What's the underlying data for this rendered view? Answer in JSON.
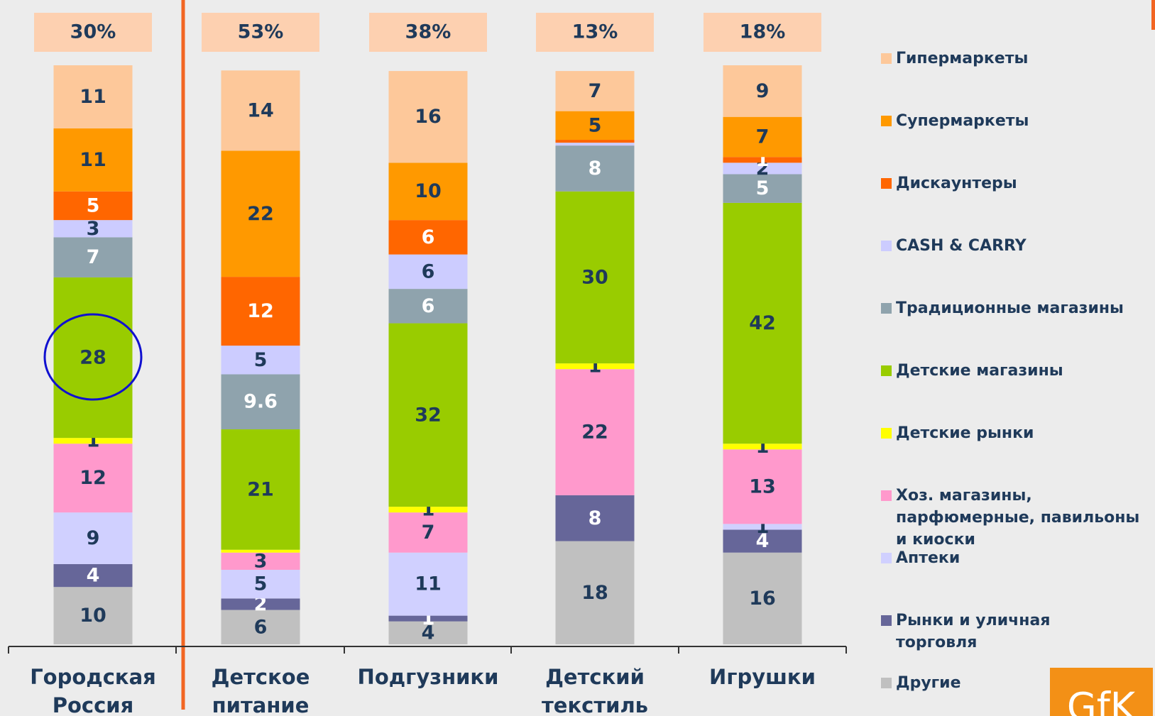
{
  "chart_data": {
    "type": "stacked-bar",
    "categories": [
      "Городская Россия",
      "Детское питание",
      "Подгузники",
      "Детский текстиль",
      "Игрушки"
    ],
    "shares": {
      "values": [
        30,
        53,
        38,
        13,
        18
      ],
      "value_labels": [
        "30%",
        "53%",
        "38%",
        "13%",
        "18%"
      ]
    },
    "series": [
      {
        "name": "Гипермаркеты",
        "color": "#fdc89a",
        "label_color": "#1f3a5a",
        "values": [
          11,
          14,
          16,
          7,
          9
        ]
      },
      {
        "name": "Супермаркеты",
        "color": "#ff9900",
        "label_color": "#1f3a5a",
        "values": [
          11,
          22,
          10,
          5,
          7
        ]
      },
      {
        "name": "Дискаунтеры",
        "color": "#ff6600",
        "label_color": "#ffffff",
        "values": [
          5,
          12,
          6,
          0.5,
          1
        ],
        "value_labels": [
          "5",
          "12",
          "6",
          null,
          "1"
        ]
      },
      {
        "name": "CASH & CARRY",
        "color": "#ccccff",
        "label_color": "#1f3a5a",
        "values": [
          3,
          5,
          6,
          0.5,
          2
        ],
        "value_labels": [
          "3",
          "5",
          "6",
          null,
          "2"
        ]
      },
      {
        "name": "Традиционные магазины",
        "color": "#8fa3ad",
        "label_color": "#ffffff",
        "values": [
          7,
          9.6,
          6,
          8,
          5
        ]
      },
      {
        "name": "Детские магазины",
        "color": "#99cc00",
        "label_color": "#1f3a5a",
        "values": [
          28,
          21,
          32,
          30,
          42
        ]
      },
      {
        "name": "Детские рынки",
        "color": "#ffff00",
        "label_color": "#1f3a5a",
        "values": [
          1,
          0.5,
          1,
          1,
          1
        ],
        "value_labels": [
          "1",
          null,
          "1",
          "1",
          "1"
        ]
      },
      {
        "name": "Хоз. магазины, парфюмерные, павильоны и киоски",
        "color": "#ff99cc",
        "label_color": "#1f3a5a",
        "values": [
          12,
          3,
          7,
          22,
          13
        ]
      },
      {
        "name": "Аптеки",
        "color": "#d0d0ff",
        "label_color": "#1f3a5a",
        "values": [
          9,
          5,
          11,
          null,
          1
        ]
      },
      {
        "name": "Рынки и уличная торговля",
        "color": "#666699",
        "label_color": "#ffffff",
        "values": [
          4,
          2,
          1,
          8,
          4
        ]
      },
      {
        "name": "Другие",
        "color": "#c0c0c0",
        "label_color": "#1f3a5a",
        "values": [
          10,
          6,
          4,
          18,
          16
        ]
      }
    ],
    "logo": "GfK"
  }
}
